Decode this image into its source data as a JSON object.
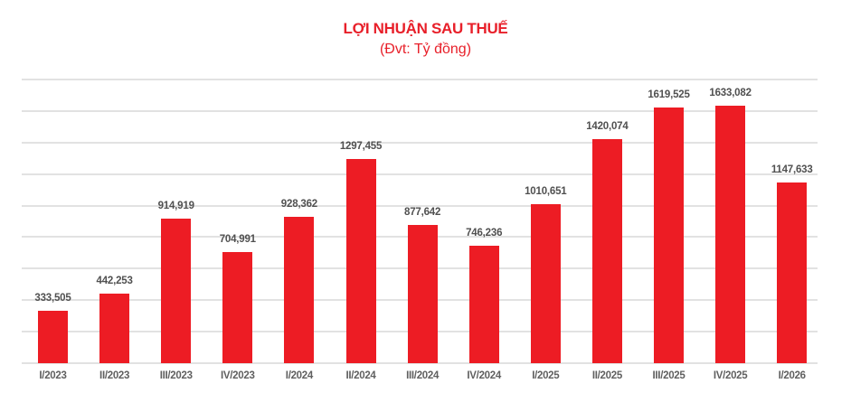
{
  "header": {
    "title": "LỢI NHUẬN SAU THUẾ",
    "subtitle": "(Đvt: Tỷ đồng)"
  },
  "colors": {
    "bar": "#ed1c24",
    "title": "#e8202a",
    "gridline": "#e2e2e2",
    "label": "#505050"
  },
  "chart_data": {
    "type": "bar",
    "title": "LỢI NHUẬN SAU THUẾ",
    "subtitle": "(Đvt: Tỷ đồng)",
    "xlabel": "",
    "ylabel": "",
    "ylim": [
      0,
      1800
    ],
    "grid": true,
    "legend": "none",
    "categories": [
      "I/2023",
      "II/2023",
      "III/2023",
      "IV/2023",
      "I/2024",
      "II/2024",
      "III/2024",
      "IV/2024",
      "I/2025",
      "II/2025",
      "III/2025",
      "IV/2025",
      "I/2026"
    ],
    "values": [
      333.505,
      442.253,
      914.919,
      704.991,
      928.362,
      1297.455,
      877.642,
      746.236,
      1010.651,
      1420.074,
      1619.525,
      1633.082,
      1147.633
    ],
    "value_labels": [
      "333,505",
      "442,253",
      "914,919",
      "704,991",
      "928,362",
      "1297,455",
      "877,642",
      "746,236",
      "1010,651",
      "1420,074",
      "1619,525",
      "1633,082",
      "1147,633"
    ]
  }
}
